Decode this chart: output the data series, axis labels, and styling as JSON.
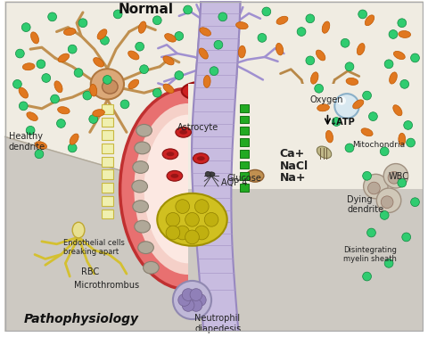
{
  "normal_label": "Normal",
  "patho_label": "Pathophysiology",
  "labels": {
    "healthy_dendrite": "Healthy\ndendrite",
    "astrocyte": "Astrocyte",
    "glucose": "Glucose",
    "aqp4": "AQP 4",
    "endothelial": "Endothelial cells\nbreaking apart",
    "rbc": "RBC",
    "microthrombus": "Microthrombus",
    "neutrophil": "Neutrophil\ndiapedesis",
    "oxygen": "Oxygen",
    "atp": "↓ATP",
    "mitochondria": "Mitochondria",
    "ca": "Ca+",
    "nacl": "NaCl",
    "na": "Na+",
    "dying_dendrite": "Dying\ndendrite",
    "wbc": "WBC",
    "disintegrating": "Disintegrating\nmyelin sheath"
  },
  "colors": {
    "bg_normal_light": "#f0ece2",
    "bg_patho_gray": "#cdc9c2",
    "vessel_wall_dark": "#c03030",
    "vessel_wall_mid": "#e87070",
    "vessel_lumen": "#f5d0c8",
    "vessel_inner_pink": "#f0c0b8",
    "microthrombus": "#d4c020",
    "rbc": "#cc2222",
    "rbc_center": "#aa1010",
    "green_marker": "#22aa22",
    "neuron_normal_body": "#dba878",
    "neuron_normal_nucleus": "#c89060",
    "dendrite_normal": "#c09050",
    "axon_seg_normal": "#e8e090",
    "axon_seg_edge": "#c8b840",
    "yellow_branch": "#d4c030",
    "astrocyte_body": "#c0b8e0",
    "astrocyte_nucleus": "#a090d0",
    "astrocyte_branch": "#a090d0",
    "tube_fill": "#c8bce0",
    "tube_edge": "#9888c0",
    "tube_stripe": "#a898c8",
    "neuron_dying_body": "#d4a870",
    "neuron_dying_nucleus": "#a8906a",
    "dendrite_dying": "#b88848",
    "axon_dying": "#d4c060",
    "axon_dying_edge": "#a09030",
    "mito_fill": "#b0a890",
    "mito_edge": "#807060",
    "green_dot": "#30cc70",
    "green_dot_edge": "#108840",
    "orange_dot": "#e07820",
    "orange_dot_edge": "#c05800",
    "neutrophil_body": "#b0a8c8",
    "neutrophil_nucleus": "#8878b0",
    "wbc_body": "#d0c8b8",
    "wbc_nucleus": "#b8a898",
    "oxygen_sphere": "#c0d8e8",
    "oxygen_edge": "#80a8c8",
    "glucose_oval": "#c09050",
    "text_color": "#222222",
    "red_cap": "#cc2020"
  }
}
